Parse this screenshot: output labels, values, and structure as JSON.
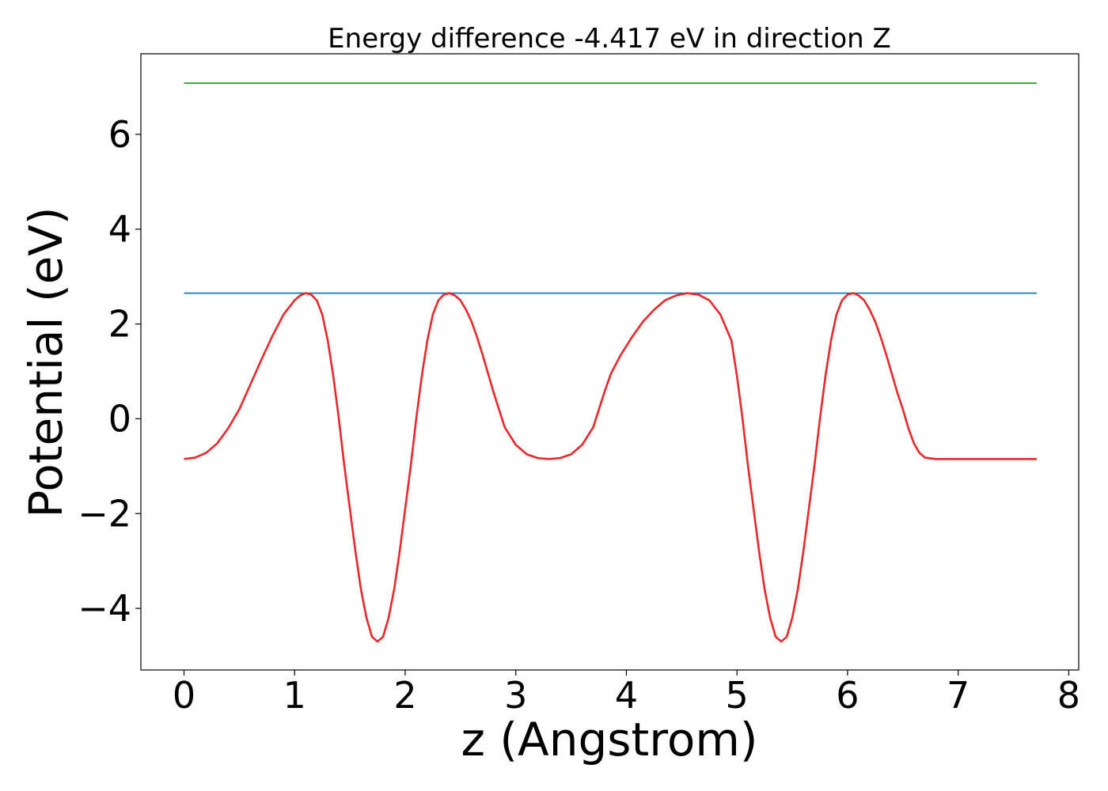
{
  "chart_data": {
    "type": "line",
    "title": "Energy difference -4.417 eV in direction Z",
    "xlabel": "z (Angstrom)",
    "ylabel": "Potential (eV)",
    "xlim": [
      -0.39,
      8.09
    ],
    "ylim": [
      -5.3,
      7.7
    ],
    "xticks": [
      {
        "value": 0,
        "label": "0"
      },
      {
        "value": 1,
        "label": "1"
      },
      {
        "value": 2,
        "label": "2"
      },
      {
        "value": 3,
        "label": "3"
      },
      {
        "value": 4,
        "label": "4"
      },
      {
        "value": 5,
        "label": "5"
      },
      {
        "value": 6,
        "label": "6"
      },
      {
        "value": 7,
        "label": "7"
      },
      {
        "value": 8,
        "label": "8"
      }
    ],
    "yticks": [
      {
        "value": -4,
        "label": "−4"
      },
      {
        "value": -2,
        "label": "−2"
      },
      {
        "value": 0,
        "label": "0"
      },
      {
        "value": 2,
        "label": "2"
      },
      {
        "value": 4,
        "label": "4"
      },
      {
        "value": 6,
        "label": "6"
      }
    ],
    "grid": false,
    "series": [
      {
        "color": "#2ca02c",
        "x": [
          0,
          7.71
        ],
        "y": [
          7.08,
          7.08
        ]
      },
      {
        "color": "#1f77b4",
        "x": [
          0,
          7.71
        ],
        "y": [
          2.65,
          2.65
        ]
      },
      {
        "color": "#e8282b",
        "x": [
          0.0,
          0.1,
          0.2,
          0.3,
          0.4,
          0.5,
          0.6,
          0.7,
          0.8,
          0.9,
          1.0,
          1.05,
          1.1,
          1.15,
          1.2,
          1.25,
          1.3,
          1.35,
          1.4,
          1.45,
          1.5,
          1.55,
          1.6,
          1.65,
          1.7,
          1.75,
          1.8,
          1.85,
          1.9,
          1.95,
          2.0,
          2.05,
          2.1,
          2.15,
          2.2,
          2.25,
          2.3,
          2.35,
          2.4,
          2.45,
          2.5,
          2.55,
          2.6,
          2.65,
          2.7,
          2.75,
          2.8,
          2.9,
          3.0,
          3.1,
          3.2,
          3.3,
          3.4,
          3.5,
          3.6,
          3.7,
          3.8,
          3.86,
          3.95,
          4.05,
          4.15,
          4.25,
          4.35,
          4.45,
          4.55,
          4.65,
          4.75,
          4.85,
          4.95,
          5.0,
          5.05,
          5.1,
          5.15,
          5.2,
          5.25,
          5.3,
          5.35,
          5.4,
          5.45,
          5.5,
          5.55,
          5.6,
          5.65,
          5.7,
          5.75,
          5.8,
          5.85,
          5.9,
          5.95,
          6.0,
          6.05,
          6.1,
          6.15,
          6.2,
          6.25,
          6.3,
          6.35,
          6.4,
          6.45,
          6.5,
          6.55,
          6.6,
          6.65,
          6.7,
          6.8,
          6.9,
          7.0,
          7.1,
          7.2,
          7.3,
          7.4,
          7.5,
          7.6,
          7.71
        ],
        "y": [
          -0.85,
          -0.82,
          -0.72,
          -0.52,
          -0.2,
          0.2,
          0.72,
          1.25,
          1.75,
          2.2,
          2.5,
          2.6,
          2.65,
          2.62,
          2.5,
          2.2,
          1.65,
          0.9,
          0.0,
          -1.0,
          -1.9,
          -2.8,
          -3.6,
          -4.2,
          -4.6,
          -4.7,
          -4.6,
          -4.2,
          -3.6,
          -2.8,
          -1.9,
          -1.0,
          0.0,
          0.9,
          1.65,
          2.2,
          2.5,
          2.62,
          2.65,
          2.6,
          2.5,
          2.3,
          2.05,
          1.72,
          1.35,
          0.95,
          0.55,
          -0.18,
          -0.55,
          -0.75,
          -0.83,
          -0.85,
          -0.83,
          -0.75,
          -0.55,
          -0.18,
          0.55,
          0.95,
          1.35,
          1.72,
          2.05,
          2.3,
          2.5,
          2.6,
          2.65,
          2.62,
          2.5,
          2.2,
          1.65,
          0.9,
          0.0,
          -1.0,
          -1.9,
          -2.8,
          -3.6,
          -4.2,
          -4.6,
          -4.7,
          -4.6,
          -4.2,
          -3.6,
          -2.8,
          -1.9,
          -1.0,
          0.0,
          0.9,
          1.65,
          2.2,
          2.5,
          2.62,
          2.65,
          2.6,
          2.5,
          2.3,
          2.05,
          1.72,
          1.35,
          0.95,
          0.55,
          0.2,
          -0.2,
          -0.52,
          -0.72,
          -0.82,
          -0.85,
          -0.85,
          -0.85,
          -0.85,
          -0.85,
          -0.85,
          -0.85,
          -0.85,
          -0.85,
          -0.85
        ]
      }
    ]
  }
}
